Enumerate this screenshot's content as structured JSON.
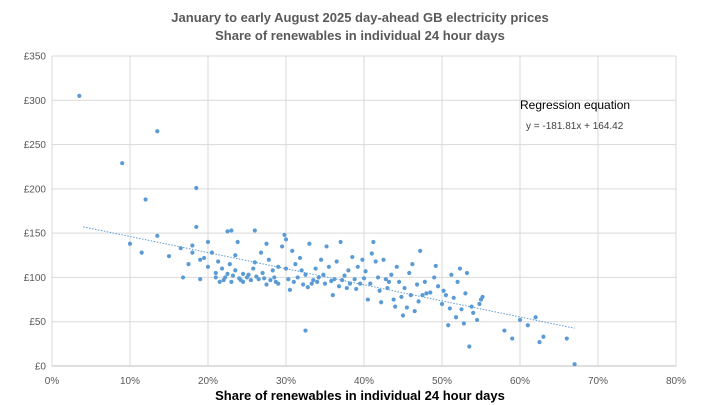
{
  "chart_data": {
    "type": "scatter",
    "title": "January to early August 2025 day-ahead GB electricity prices",
    "subtitle": "Share of renewables in individual 24 hour days",
    "xlabel": "Share of renewables in individual 24 hour days",
    "ylabel": "",
    "xlim": [
      0,
      0.8
    ],
    "ylim": [
      0,
      350
    ],
    "x_ticks": [
      "0%",
      "10%",
      "20%",
      "30%",
      "40%",
      "50%",
      "60%",
      "70%",
      "80%"
    ],
    "y_ticks": [
      "£0",
      "£50",
      "£100",
      "£150",
      "£200",
      "£250",
      "£300",
      "£350"
    ],
    "grid": true,
    "marker_color": "#5b9bd5",
    "trendline": {
      "slope": -181.81,
      "intercept": 164.42,
      "x_range": [
        0.04,
        0.67
      ]
    },
    "annotation_title": "Regression equation",
    "annotation_equation": "y = -181.81x + 164.42",
    "points": [
      [
        0.035,
        305
      ],
      [
        0.09,
        229
      ],
      [
        0.1,
        138
      ],
      [
        0.12,
        188
      ],
      [
        0.115,
        128
      ],
      [
        0.135,
        265
      ],
      [
        0.135,
        147
      ],
      [
        0.15,
        124
      ],
      [
        0.165,
        133
      ],
      [
        0.168,
        100
      ],
      [
        0.175,
        115
      ],
      [
        0.18,
        136
      ],
      [
        0.185,
        201
      ],
      [
        0.185,
        157
      ],
      [
        0.18,
        128
      ],
      [
        0.19,
        98
      ],
      [
        0.19,
        120
      ],
      [
        0.195,
        122
      ],
      [
        0.2,
        140
      ],
      [
        0.2,
        112
      ],
      [
        0.205,
        128
      ],
      [
        0.21,
        105
      ],
      [
        0.21,
        100
      ],
      [
        0.213,
        118
      ],
      [
        0.215,
        95
      ],
      [
        0.218,
        110
      ],
      [
        0.22,
        97
      ],
      [
        0.222,
        100
      ],
      [
        0.225,
        152
      ],
      [
        0.225,
        104
      ],
      [
        0.228,
        115
      ],
      [
        0.23,
        153
      ],
      [
        0.23,
        95
      ],
      [
        0.232,
        102
      ],
      [
        0.235,
        125
      ],
      [
        0.235,
        108
      ],
      [
        0.238,
        140
      ],
      [
        0.24,
        99
      ],
      [
        0.242,
        97
      ],
      [
        0.245,
        95
      ],
      [
        0.245,
        104
      ],
      [
        0.25,
        100
      ],
      [
        0.252,
        103
      ],
      [
        0.255,
        97
      ],
      [
        0.258,
        110
      ],
      [
        0.26,
        117
      ],
      [
        0.26,
        153
      ],
      [
        0.262,
        101
      ],
      [
        0.265,
        98
      ],
      [
        0.268,
        128
      ],
      [
        0.27,
        105
      ],
      [
        0.272,
        99
      ],
      [
        0.275,
        92
      ],
      [
        0.275,
        138
      ],
      [
        0.278,
        120
      ],
      [
        0.28,
        97
      ],
      [
        0.283,
        108
      ],
      [
        0.285,
        100
      ],
      [
        0.287,
        95
      ],
      [
        0.29,
        93
      ],
      [
        0.29,
        112
      ],
      [
        0.295,
        135
      ],
      [
        0.298,
        148
      ],
      [
        0.3,
        143
      ],
      [
        0.3,
        110
      ],
      [
        0.303,
        98
      ],
      [
        0.305,
        86
      ],
      [
        0.308,
        130
      ],
      [
        0.31,
        95
      ],
      [
        0.312,
        115
      ],
      [
        0.315,
        100
      ],
      [
        0.318,
        122
      ],
      [
        0.32,
        108
      ],
      [
        0.322,
        92
      ],
      [
        0.325,
        40
      ],
      [
        0.325,
        103
      ],
      [
        0.328,
        89
      ],
      [
        0.33,
        138
      ],
      [
        0.333,
        93
      ],
      [
        0.335,
        97
      ],
      [
        0.338,
        110
      ],
      [
        0.34,
        95
      ],
      [
        0.342,
        100
      ],
      [
        0.345,
        120
      ],
      [
        0.348,
        103
      ],
      [
        0.35,
        93
      ],
      [
        0.352,
        135
      ],
      [
        0.355,
        112
      ],
      [
        0.358,
        96
      ],
      [
        0.36,
        80
      ],
      [
        0.362,
        98
      ],
      [
        0.365,
        118
      ],
      [
        0.368,
        90
      ],
      [
        0.37,
        140
      ],
      [
        0.372,
        97
      ],
      [
        0.375,
        102
      ],
      [
        0.378,
        88
      ],
      [
        0.38,
        108
      ],
      [
        0.382,
        93
      ],
      [
        0.385,
        123
      ],
      [
        0.388,
        98
      ],
      [
        0.39,
        87
      ],
      [
        0.392,
        112
      ],
      [
        0.395,
        93
      ],
      [
        0.398,
        120
      ],
      [
        0.4,
        99
      ],
      [
        0.402,
        107
      ],
      [
        0.405,
        75
      ],
      [
        0.408,
        93
      ],
      [
        0.41,
        127
      ],
      [
        0.412,
        140
      ],
      [
        0.415,
        118
      ],
      [
        0.418,
        100
      ],
      [
        0.42,
        85
      ],
      [
        0.422,
        72
      ],
      [
        0.425,
        120
      ],
      [
        0.428,
        98
      ],
      [
        0.43,
        88
      ],
      [
        0.432,
        95
      ],
      [
        0.435,
        103
      ],
      [
        0.438,
        75
      ],
      [
        0.44,
        67
      ],
      [
        0.442,
        112
      ],
      [
        0.445,
        95
      ],
      [
        0.448,
        78
      ],
      [
        0.45,
        57
      ],
      [
        0.452,
        88
      ],
      [
        0.455,
        66
      ],
      [
        0.458,
        105
      ],
      [
        0.46,
        80
      ],
      [
        0.462,
        115
      ],
      [
        0.465,
        62
      ],
      [
        0.468,
        92
      ],
      [
        0.47,
        73
      ],
      [
        0.472,
        130
      ],
      [
        0.475,
        80
      ],
      [
        0.478,
        95
      ],
      [
        0.48,
        82
      ],
      [
        0.485,
        83
      ],
      [
        0.49,
        100
      ],
      [
        0.492,
        113
      ],
      [
        0.495,
        90
      ],
      [
        0.5,
        70
      ],
      [
        0.502,
        85
      ],
      [
        0.505,
        80
      ],
      [
        0.508,
        46
      ],
      [
        0.51,
        65
      ],
      [
        0.512,
        103
      ],
      [
        0.515,
        77
      ],
      [
        0.518,
        55
      ],
      [
        0.52,
        95
      ],
      [
        0.523,
        110
      ],
      [
        0.525,
        64
      ],
      [
        0.528,
        48
      ],
      [
        0.53,
        82
      ],
      [
        0.532,
        105
      ],
      [
        0.535,
        22
      ],
      [
        0.538,
        67
      ],
      [
        0.54,
        60
      ],
      [
        0.545,
        52
      ],
      [
        0.548,
        70
      ],
      [
        0.55,
        75
      ],
      [
        0.552,
        78
      ],
      [
        0.58,
        40
      ],
      [
        0.59,
        31
      ],
      [
        0.6,
        52
      ],
      [
        0.61,
        46
      ],
      [
        0.62,
        55
      ],
      [
        0.625,
        27
      ],
      [
        0.63,
        33
      ],
      [
        0.66,
        31
      ],
      [
        0.67,
        2
      ]
    ]
  }
}
